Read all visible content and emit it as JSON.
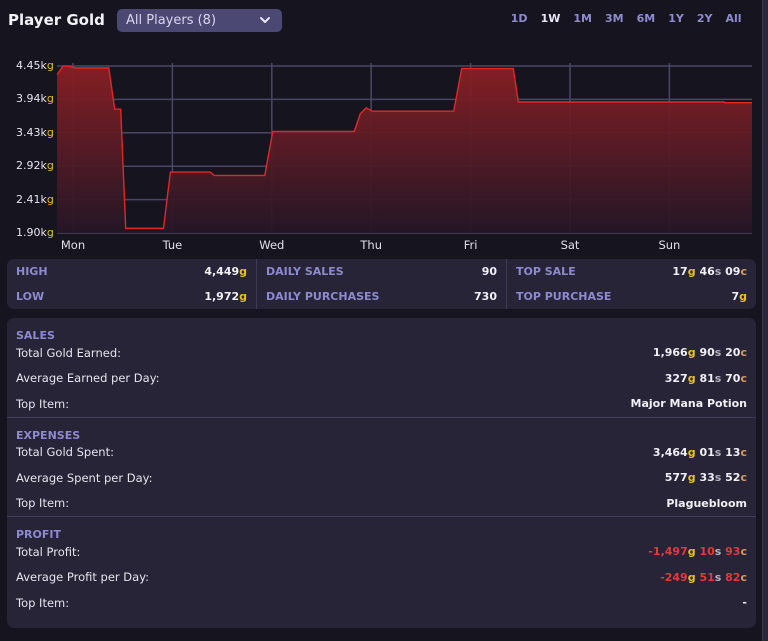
{
  "header": {
    "title": "Player Gold",
    "player_select": "All Players (8)",
    "ranges": [
      "1D",
      "1W",
      "1M",
      "3M",
      "6M",
      "1Y",
      "2Y",
      "All"
    ],
    "active_range": "1W"
  },
  "chart_data": {
    "type": "area",
    "title": "Player Gold",
    "xlabel": "",
    "ylabel": "Gold",
    "y_unit_suffix": "g",
    "yticks": [
      "4.45k",
      "3.94k",
      "3.43k",
      "2.92k",
      "2.41k",
      "1.90k"
    ],
    "ylim": [
      1900,
      4450
    ],
    "categories": [
      "Mon",
      "Tue",
      "Wed",
      "Thu",
      "Fri",
      "Sat",
      "Sun"
    ],
    "grid": true,
    "legend": "none",
    "series": [
      {
        "name": "Player Gold",
        "color": "#e02828",
        "points": [
          {
            "day": -0.16,
            "value": 4320
          },
          {
            "day": -0.1,
            "value": 4449
          },
          {
            "day": -0.05,
            "value": 4449
          },
          {
            "day": 0.03,
            "value": 4420
          },
          {
            "day": 0.36,
            "value": 4420
          },
          {
            "day": 0.42,
            "value": 3790
          },
          {
            "day": 0.48,
            "value": 3790
          },
          {
            "day": 0.53,
            "value": 1972
          },
          {
            "day": 0.91,
            "value": 1972
          },
          {
            "day": 0.98,
            "value": 2830
          },
          {
            "day": 1.38,
            "value": 2830
          },
          {
            "day": 1.42,
            "value": 2780
          },
          {
            "day": 1.93,
            "value": 2780
          },
          {
            "day": 2.01,
            "value": 3450
          },
          {
            "day": 2.83,
            "value": 3450
          },
          {
            "day": 2.89,
            "value": 3720
          },
          {
            "day": 2.95,
            "value": 3810
          },
          {
            "day": 3.01,
            "value": 3760
          },
          {
            "day": 3.83,
            "value": 3760
          },
          {
            "day": 3.91,
            "value": 4410
          },
          {
            "day": 4.43,
            "value": 4410
          },
          {
            "day": 4.48,
            "value": 3900
          },
          {
            "day": 6.55,
            "value": 3900
          },
          {
            "day": 6.56,
            "value": 3890
          },
          {
            "day": 6.84,
            "value": 3890
          }
        ]
      }
    ]
  },
  "stats": {
    "high": {
      "label": "HIGH",
      "value": "4,449",
      "unit": "g"
    },
    "low": {
      "label": "LOW",
      "value": "1,972",
      "unit": "g"
    },
    "daily_sales": {
      "label": "DAILY SALES",
      "value": "90"
    },
    "daily_purchases": {
      "label": "DAILY PURCHASES",
      "value": "730"
    },
    "top_sale": {
      "label": "TOP SALE",
      "gold": "17",
      "silver": "46",
      "copper": "09"
    },
    "top_purchase": {
      "label": "TOP PURCHASE",
      "gold": "7"
    }
  },
  "summary": {
    "sales": {
      "title": "SALES",
      "total_label": "Total Gold Earned:",
      "total": {
        "gold": "1,966",
        "silver": "90",
        "copper": "20"
      },
      "avg_label": "Average Earned per Day:",
      "avg": {
        "gold": "327",
        "silver": "81",
        "copper": "70"
      },
      "top_label": "Top Item:",
      "top_item": "Major Mana Potion"
    },
    "expenses": {
      "title": "EXPENSES",
      "total_label": "Total Gold Spent:",
      "total": {
        "gold": "3,464",
        "silver": "01",
        "copper": "13"
      },
      "avg_label": "Average Spent per Day:",
      "avg": {
        "gold": "577",
        "silver": "33",
        "copper": "52"
      },
      "top_label": "Top Item:",
      "top_item": "Plaguebloom"
    },
    "profit": {
      "title": "PROFIT",
      "total_label": "Total Profit:",
      "total": {
        "gold": "-1,497",
        "silver": "10",
        "copper": "93"
      },
      "avg_label": "Average Profit per Day:",
      "avg": {
        "gold": "-249",
        "silver": "51",
        "copper": "82"
      },
      "top_label": "Top Item:",
      "top_item": "-"
    }
  },
  "units": {
    "gold": "g",
    "silver": "s",
    "copper": "c",
    "kilo_gold": "k"
  },
  "colors": {
    "background": "#15141f",
    "panel": "#262436",
    "accent_label": "#8e89d0",
    "gold": "#e5c21e",
    "silver": "#b5b3bf",
    "copper": "#d89a5a",
    "negative": "#e53939",
    "line": "#e02828"
  }
}
